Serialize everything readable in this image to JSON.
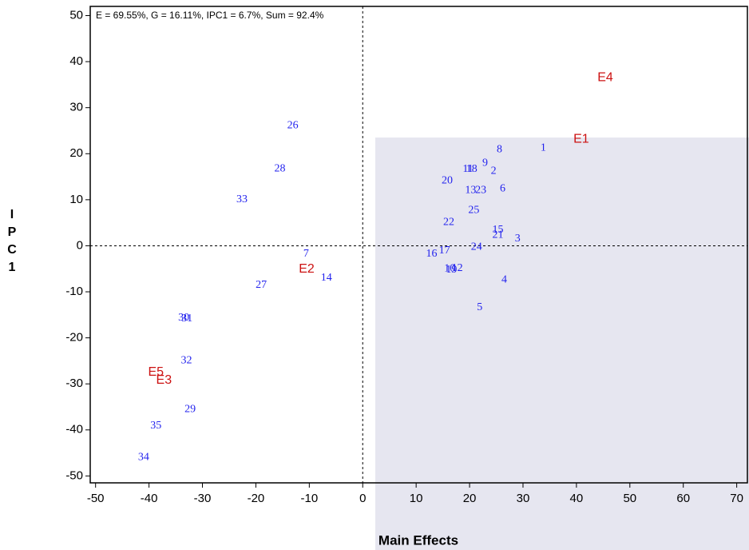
{
  "chart_data": {
    "type": "scatter",
    "annotation": "E = 69.55%, G = 16.11%, IPC1 = 6.7%, Sum = 92.4%",
    "x_label": "Main Effects",
    "y_label": "IPC1",
    "xlim": [
      -51,
      72
    ],
    "ylim": [
      -51.5,
      52
    ],
    "xticks": [
      -50,
      -40,
      -30,
      -20,
      -10,
      0,
      10,
      20,
      30,
      40,
      50,
      60,
      70
    ],
    "yticks": [
      -50,
      -40,
      -30,
      -20,
      -10,
      0,
      10,
      20,
      30,
      40,
      50
    ],
    "reference_lines": [
      0,
      0
    ],
    "series": [
      {
        "color": "#2222ee",
        "labels": [
          "1",
          "2",
          "3",
          "4",
          "5",
          "6",
          "7",
          "8",
          "9",
          "10",
          "11",
          "12",
          "13",
          "14",
          "15",
          "16",
          "17",
          "18",
          "19",
          "20",
          "21",
          "22",
          "23",
          "24",
          "25",
          "26",
          "27",
          "28",
          "29",
          "30",
          "31",
          "32",
          "33",
          "34",
          "35"
        ],
        "x": [
          33.8,
          24.5,
          29.0,
          26.5,
          21.9,
          26.2,
          -10.6,
          25.6,
          22.9,
          16.3,
          19.7,
          17.7,
          20.2,
          -6.8,
          25.3,
          12.9,
          15.3,
          20.4,
          16.6,
          15.8,
          25.3,
          16.1,
          22.1,
          21.3,
          20.8,
          -13.1,
          -19.0,
          -15.5,
          -32.3,
          -33.5,
          -32.9,
          -33.0,
          -22.6,
          -41.0,
          -38.7
        ],
        "y": [
          21.2,
          16.2,
          1.5,
          -7.4,
          -13.4,
          12.4,
          -1.8,
          20.9,
          17.9,
          -5.0,
          16.6,
          -4.9,
          12.0,
          -7.0,
          3.4,
          -1.8,
          -1.1,
          16.6,
          -5.3,
          14.1,
          2.3,
          5.1,
          12.0,
          -0.3,
          7.7,
          26.1,
          -8.6,
          16.7,
          -35.6,
          -15.7,
          -15.9,
          -25.0,
          10.0,
          -46.0,
          -39.1
        ]
      },
      {
        "color": "#cc1111",
        "labels": [
          "E1",
          "E2",
          "E3",
          "E4",
          "E5"
        ],
        "x": [
          40.9,
          -10.5,
          -37.2,
          45.4,
          -38.7
        ],
        "y": [
          23.1,
          -5.1,
          -29.2,
          36.5,
          -27.5
        ]
      }
    ]
  }
}
